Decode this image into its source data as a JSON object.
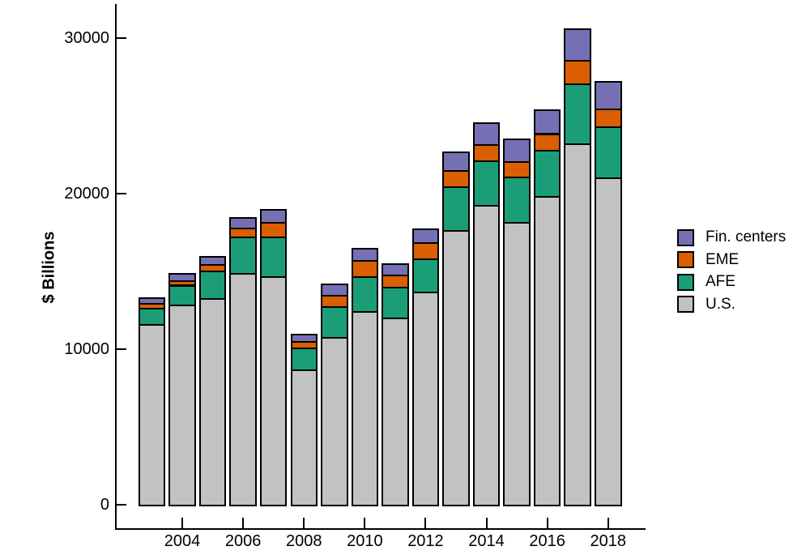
{
  "chart_data": {
    "type": "bar",
    "stacked": true,
    "title": "",
    "ylabel": "$ Billions",
    "xlabel": "",
    "categories": [
      2003,
      2004,
      2005,
      2006,
      2007,
      2008,
      2009,
      2010,
      2011,
      2012,
      2013,
      2014,
      2015,
      2016,
      2017,
      2018
    ],
    "series": [
      {
        "name": "U.S.",
        "color": "#c2c2c2",
        "values": [
          11640,
          12860,
          13300,
          14890,
          14710,
          8720,
          10790,
          12450,
          12030,
          13720,
          17640,
          19280,
          18190,
          19840,
          23210,
          21040
        ]
      },
      {
        "name": "AFE",
        "color": "#1b9e77",
        "values": [
          1030,
          1280,
          1760,
          2330,
          2540,
          1380,
          1960,
          2250,
          1990,
          2090,
          2840,
          2830,
          2910,
          2960,
          3880,
          3270
        ]
      },
      {
        "name": "EME",
        "color": "#d95f02",
        "values": [
          290,
          310,
          430,
          580,
          950,
          430,
          730,
          1020,
          770,
          1090,
          1010,
          1070,
          960,
          1080,
          1500,
          1170
        ]
      },
      {
        "name": "Fin. centers",
        "color": "#7570b3",
        "values": [
          350,
          420,
          520,
          700,
          820,
          440,
          720,
          770,
          750,
          840,
          1220,
          1400,
          1470,
          1560,
          2030,
          1740
        ]
      }
    ],
    "totals": [
      13310,
      14870,
      16010,
      18500,
      19020,
      10970,
      14200,
      16490,
      15540,
      17740,
      22710,
      24580,
      23530,
      25440,
      30620,
      27220
    ],
    "y_ticks": [
      "0",
      "10000",
      "20000",
      "30000"
    ],
    "ylim": [
      0,
      32200
    ],
    "x_tick_labels": [
      "2004",
      "2006",
      "2008",
      "2010",
      "2012",
      "2014",
      "2016",
      "2018"
    ],
    "grid": false,
    "bar_border_color": "#000000",
    "axis_color": "#000000",
    "background_color": "#ffffff",
    "legend": {
      "position": "right",
      "items_top_to_bottom": [
        "Fin. centers",
        "EME",
        "AFE",
        "U.S."
      ]
    }
  }
}
